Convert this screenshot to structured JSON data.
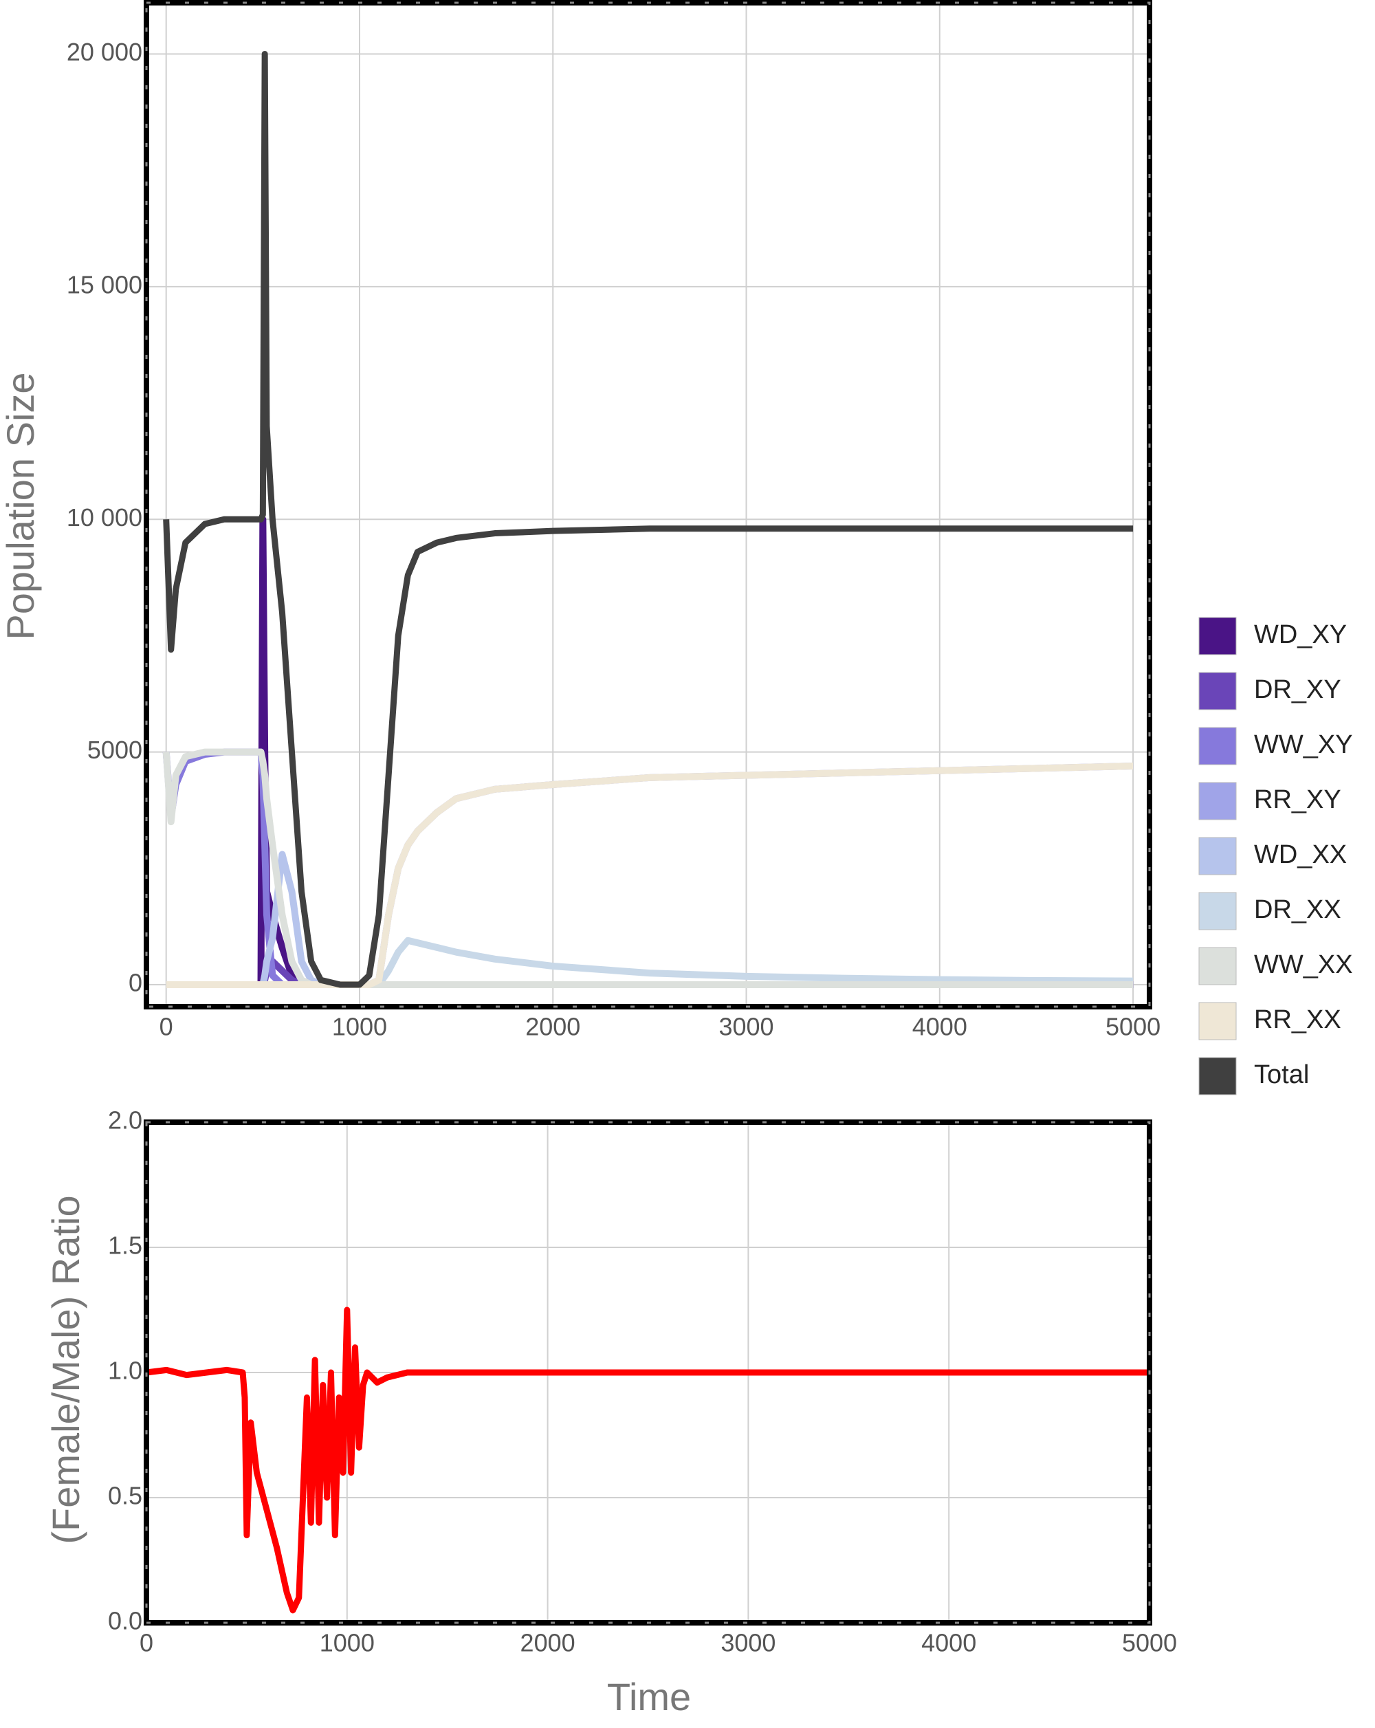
{
  "chart_data": [
    {
      "type": "line",
      "y_label": "Population Size",
      "x": [
        0,
        25,
        50,
        100,
        200,
        300,
        400,
        490,
        500,
        510,
        520,
        550,
        600,
        650,
        700,
        750,
        800,
        900,
        1000,
        1050,
        1100,
        1150,
        1200,
        1250,
        1300,
        1400,
        1500,
        1700,
        2000,
        2500,
        3000,
        3500,
        4000,
        4500,
        5000
      ],
      "series": [
        {
          "name": "WD_XY",
          "color": "#4a1486",
          "values": [
            0,
            0,
            0,
            0,
            0,
            0,
            0,
            0,
            10000,
            5000,
            2000,
            1500,
            800,
            200,
            0,
            0,
            0,
            0,
            0,
            0,
            0,
            0,
            0,
            0,
            0,
            0,
            0,
            0,
            0,
            0,
            0,
            0,
            0,
            0,
            0
          ]
        },
        {
          "name": "DR_XY",
          "color": "#6a45b8",
          "values": [
            0,
            0,
            0,
            0,
            0,
            0,
            0,
            0,
            0,
            100,
            300,
            500,
            300,
            100,
            0,
            0,
            0,
            0,
            0,
            0,
            0,
            0,
            0,
            0,
            0,
            0,
            0,
            0,
            0,
            0,
            0,
            0,
            0,
            0,
            0
          ]
        },
        {
          "name": "WW_XY",
          "color": "#8679dc",
          "values": [
            5000,
            3600,
            4300,
            4800,
            4950,
            5000,
            5000,
            5000,
            4500,
            3000,
            1500,
            200,
            0,
            0,
            0,
            0,
            0,
            0,
            0,
            0,
            0,
            0,
            0,
            0,
            0,
            0,
            0,
            0,
            0,
            0,
            0,
            0,
            0,
            0,
            0
          ]
        },
        {
          "name": "RR_XY",
          "color": "#a0a4e8",
          "values": [
            0,
            0,
            0,
            0,
            0,
            0,
            0,
            0,
            0,
            0,
            0,
            0,
            0,
            0,
            0,
            0,
            0,
            0,
            0,
            0,
            100,
            1500,
            2500,
            3000,
            3300,
            3700,
            4000,
            4200,
            4300,
            4450,
            4500,
            4550,
            4600,
            4650,
            4700
          ]
        },
        {
          "name": "WD_XX",
          "color": "#b6c4ec",
          "values": [
            0,
            0,
            0,
            0,
            0,
            0,
            0,
            0,
            0,
            200,
            500,
            1000,
            2800,
            2000,
            500,
            100,
            0,
            0,
            0,
            0,
            0,
            0,
            0,
            0,
            0,
            0,
            0,
            0,
            0,
            0,
            0,
            0,
            0,
            0,
            0
          ]
        },
        {
          "name": "DR_XX",
          "color": "#c8d8e8",
          "values": [
            0,
            0,
            0,
            0,
            0,
            0,
            0,
            0,
            0,
            0,
            0,
            0,
            0,
            0,
            0,
            0,
            0,
            0,
            0,
            0,
            0,
            300,
            700,
            950,
            900,
            800,
            700,
            550,
            400,
            250,
            180,
            140,
            110,
            90,
            80
          ]
        },
        {
          "name": "WW_XX",
          "color": "#dce0dc",
          "values": [
            5000,
            3500,
            4500,
            4900,
            5000,
            5000,
            5000,
            5000,
            4800,
            4500,
            4000,
            3000,
            1500,
            500,
            100,
            0,
            0,
            0,
            0,
            0,
            0,
            0,
            0,
            0,
            0,
            0,
            0,
            0,
            0,
            0,
            0,
            0,
            0,
            0,
            0
          ]
        },
        {
          "name": "RR_XX",
          "color": "#efe7d6",
          "values": [
            0,
            0,
            0,
            0,
            0,
            0,
            0,
            0,
            0,
            0,
            0,
            0,
            0,
            0,
            0,
            0,
            0,
            0,
            0,
            0,
            100,
            1500,
            2500,
            3000,
            3300,
            3700,
            4000,
            4200,
            4300,
            4450,
            4500,
            4550,
            4600,
            4650,
            4700
          ]
        },
        {
          "name": "Total",
          "color": "#404040",
          "values": [
            10000,
            7200,
            8500,
            9500,
            9900,
            10000,
            10000,
            10000,
            10100,
            20000,
            12000,
            10000,
            8000,
            5000,
            2000,
            500,
            100,
            0,
            0,
            200,
            1500,
            4500,
            7500,
            8800,
            9300,
            9500,
            9600,
            9700,
            9750,
            9800,
            9800,
            9800,
            9800,
            9800,
            9800
          ]
        }
      ],
      "xlim": [
        -102,
        5085
      ],
      "ylim": [
        -472,
        21100
      ],
      "xticks": [
        0,
        1000,
        2000,
        3000,
        4000,
        5000
      ],
      "yticks": [
        0,
        5000,
        {
          "value": 10000,
          "label": "10 000"
        },
        {
          "value": 15000,
          "label": "15 000"
        },
        {
          "value": 20000,
          "label": "20 000"
        }
      ],
      "grid": true,
      "legend": "right"
    },
    {
      "type": "line",
      "x_label": "Time",
      "y_label": "(Female/Male) Ratio",
      "x": [
        0,
        100,
        200,
        300,
        400,
        480,
        490,
        500,
        520,
        550,
        600,
        650,
        700,
        730,
        760,
        780,
        800,
        820,
        840,
        860,
        880,
        900,
        920,
        940,
        960,
        980,
        1000,
        1020,
        1040,
        1060,
        1080,
        1100,
        1150,
        1200,
        1300,
        1500,
        2000,
        3000,
        4000,
        5000
      ],
      "values": [
        1,
        1.01,
        0.99,
        1,
        1.01,
        1,
        0.9,
        0.35,
        0.8,
        0.6,
        0.45,
        0.3,
        0.12,
        0.05,
        0.1,
        0.5,
        0.9,
        0.4,
        1.05,
        0.4,
        0.95,
        0.5,
        1.0,
        0.35,
        0.9,
        0.6,
        1.25,
        0.6,
        1.1,
        0.7,
        0.95,
        1.0,
        0.96,
        0.98,
        1.0,
        1.0,
        1.0,
        1.0,
        1.0,
        1.0
      ],
      "color": "#ff0000",
      "xlim": [
        0,
        5000
      ],
      "ylim": [
        0,
        2
      ],
      "xticks": [
        0,
        1000,
        2000,
        3000,
        4000,
        5000
      ],
      "yticks": [
        {
          "value": 0,
          "label": "0.0"
        },
        {
          "value": 0.5,
          "label": "0.5"
        },
        {
          "value": 1,
          "label": "1.0"
        },
        {
          "value": 1.5,
          "label": "1.5"
        },
        {
          "value": 2,
          "label": "2.0"
        }
      ],
      "grid": true
    }
  ]
}
